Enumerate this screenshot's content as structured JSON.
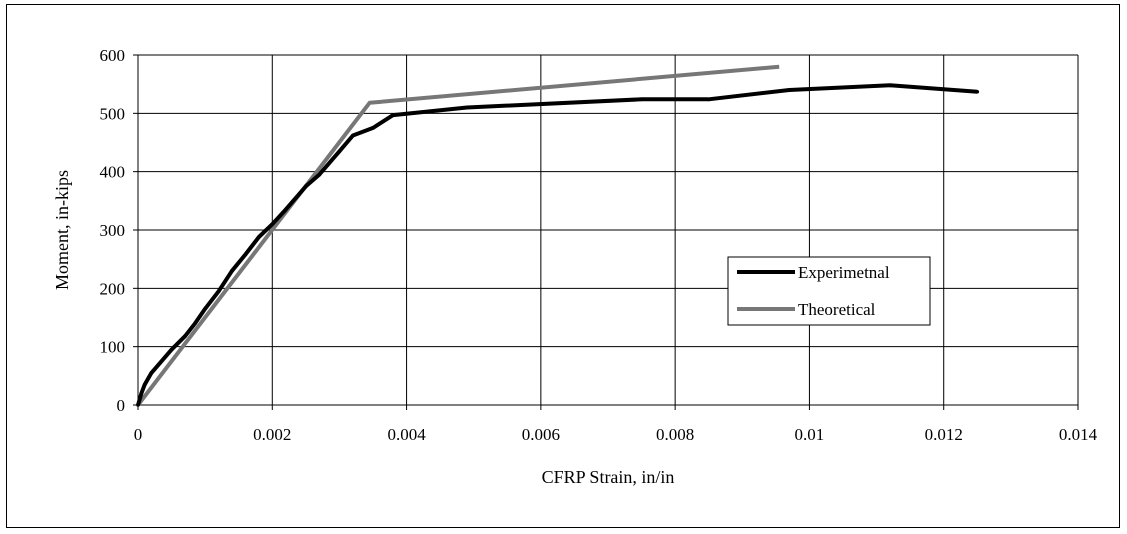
{
  "chart_data": {
    "type": "line",
    "title": "",
    "xlabel": "CFRP Strain, in/in",
    "ylabel": "Moment, in-kips",
    "xlim": [
      0,
      0.014
    ],
    "ylim": [
      0,
      600
    ],
    "x_ticks": [
      "0",
      "0.002",
      "0.004",
      "0.006",
      "0.008",
      "0.01",
      "0.012",
      "0.014"
    ],
    "y_ticks": [
      "0",
      "100",
      "200",
      "300",
      "400",
      "500",
      "600"
    ],
    "grid": true,
    "legend_position": "right",
    "series": [
      {
        "name": "Experimetnal",
        "color": "#000000",
        "points": [
          [
            0,
            0
          ],
          [
            5e-05,
            20
          ],
          [
            0.0001,
            35
          ],
          [
            0.0002,
            55
          ],
          [
            0.0005,
            95
          ],
          [
            0.0007,
            118
          ],
          [
            0.00085,
            140
          ],
          [
            0.001,
            165
          ],
          [
            0.0012,
            195
          ],
          [
            0.0014,
            230
          ],
          [
            0.0016,
            258
          ],
          [
            0.0018,
            288
          ],
          [
            0.002,
            310
          ],
          [
            0.0022,
            335
          ],
          [
            0.0025,
            375
          ],
          [
            0.0027,
            395
          ],
          [
            0.003,
            435
          ],
          [
            0.0032,
            462
          ],
          [
            0.0035,
            475
          ],
          [
            0.0038,
            497
          ],
          [
            0.0049,
            510
          ],
          [
            0.0075,
            524
          ],
          [
            0.0085,
            524
          ],
          [
            0.0097,
            540
          ],
          [
            0.0112,
            548
          ],
          [
            0.0125,
            537
          ]
        ]
      },
      {
        "name": "Theoretical",
        "color": "#777777",
        "points": [
          [
            0,
            0
          ],
          [
            0.00345,
            518
          ],
          [
            0.00955,
            580
          ]
        ]
      }
    ]
  }
}
